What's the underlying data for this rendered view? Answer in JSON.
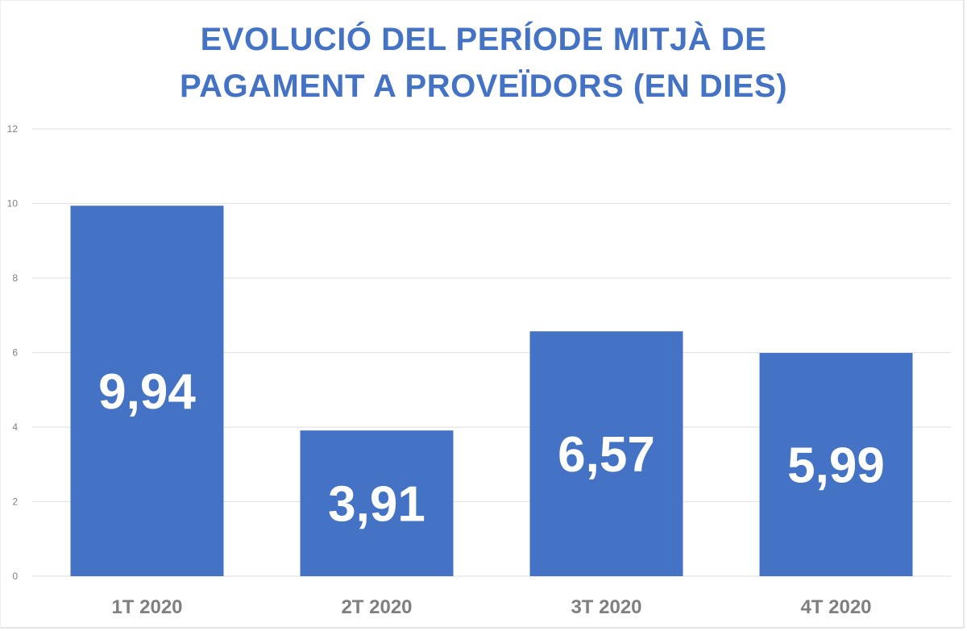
{
  "chart_data": {
    "type": "bar",
    "title_lines": [
      "EVOLUCIÓ DEL PERÍODE MITJÀ DE",
      "PAGAMENT A PROVEÏDORS  (EN DIES)"
    ],
    "categories": [
      "1T 2020",
      "2T 2020",
      "3T 2020",
      "4T 2020"
    ],
    "values": [
      9.94,
      3.91,
      6.57,
      5.99
    ],
    "data_labels": [
      "9,94",
      "3,91",
      "6,57",
      "5,99"
    ],
    "xlabel": "",
    "ylabel": "",
    "ylim": [
      0,
      12
    ],
    "yticks": [
      0,
      2,
      4,
      6,
      8,
      10,
      12
    ],
    "ytick_labels": [
      "0",
      "2",
      "4",
      "6",
      "8",
      "10",
      "12"
    ],
    "grid": true,
    "legend": "none",
    "colors": {
      "bar": "#4472c4",
      "title": "#4472c4",
      "grid": "#e4e4e4",
      "axis_text": "#7f7f7f",
      "data_label": "#ffffff"
    }
  }
}
